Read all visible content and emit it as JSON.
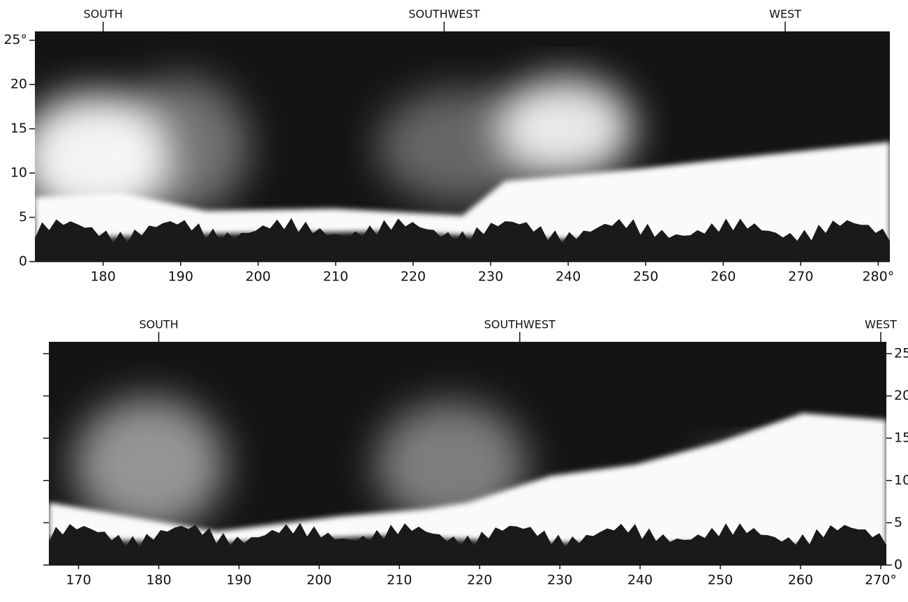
{
  "panels": [
    {
      "compass": [
        {
          "label": "SOUTH",
          "azimuth": 180
        },
        {
          "label": "SOUTHWEST",
          "azimuth": 224
        },
        {
          "label": "WEST",
          "azimuth": 268
        }
      ],
      "xlim": [
        171.2,
        281.5
      ],
      "xticks": [
        180,
        190,
        200,
        210,
        220,
        230,
        240,
        250,
        260,
        270,
        {
          "value": 280,
          "label": "280°"
        }
      ],
      "ylim": [
        0,
        26
      ],
      "yticks": [
        0,
        5,
        10,
        15,
        20,
        {
          "value": 25,
          "label": "25°"
        }
      ],
      "y_axis_side": "left",
      "y_ticks_both_sides": false
    },
    {
      "compass": [
        {
          "label": "SOUTH",
          "azimuth": 180
        },
        {
          "label": "SOUTHWEST",
          "azimuth": 225
        },
        {
          "label": "WEST",
          "azimuth": 270
        }
      ],
      "xlim": [
        166.3,
        270.7
      ],
      "xticks": [
        170,
        180,
        190,
        200,
        210,
        220,
        230,
        240,
        250,
        260,
        {
          "value": 270,
          "label": "270°"
        }
      ],
      "ylim": [
        0,
        26.4
      ],
      "yticks": [
        0,
        5,
        10,
        15,
        20,
        {
          "value": 25,
          "label": "25°"
        }
      ],
      "y_axis_side": "right",
      "y_ticks_both_sides": true
    }
  ]
}
